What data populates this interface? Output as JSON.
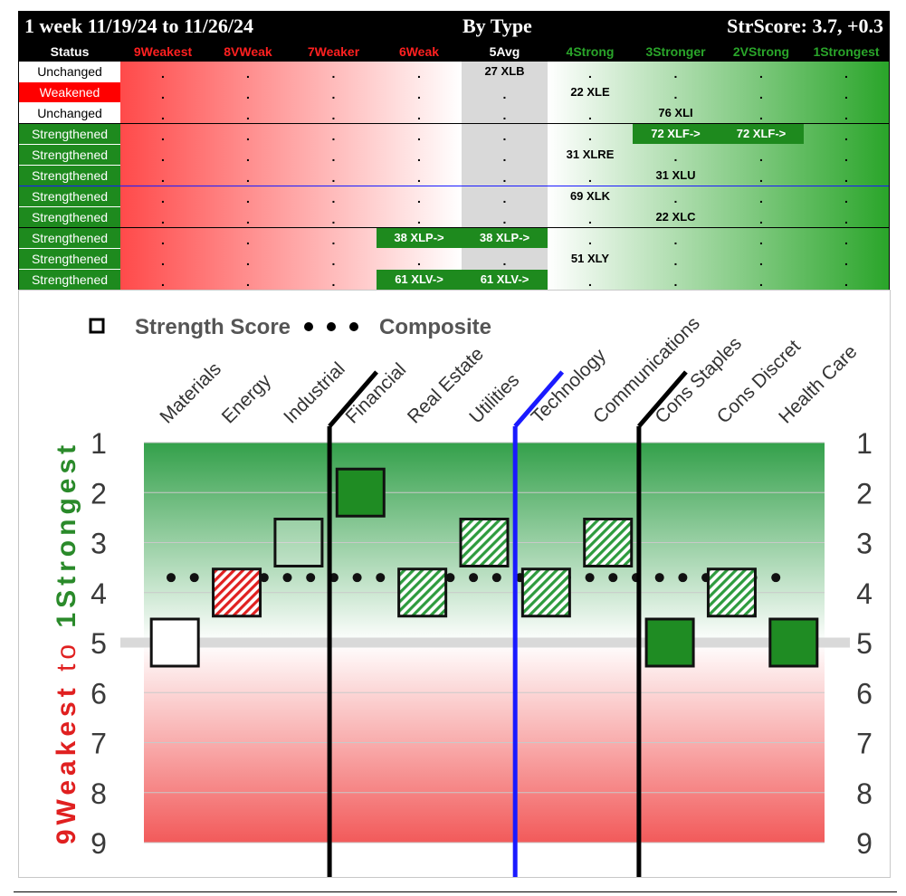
{
  "header": {
    "period": "1 week 11/19/24 to 11/26/24",
    "center": "By Type",
    "score": "StrScore: 3.7, +0.3"
  },
  "columns": [
    "Status",
    "9Weakest",
    "8VWeak",
    "7Weaker",
    "6Weak",
    "5Avg",
    "4Strong",
    "3Stronger",
    "2VStrong",
    "1Strongest"
  ],
  "column_colors": [
    "#ffffff",
    "#ff2020",
    "#ff2020",
    "#ff2020",
    "#ff2020",
    "#ffffff",
    "#2aa52a",
    "#2aa52a",
    "#2aa52a",
    "#2aa52a"
  ],
  "status_colors": {
    "Unchanged": "#ffffff",
    "Weakened": "#ff0000",
    "Strengthened": "#1e8a1e"
  },
  "rows": [
    {
      "status": "Unchanged",
      "cells": [
        {
          "col": 5,
          "text": "27 XLB"
        }
      ]
    },
    {
      "status": "Weakened",
      "cells": [
        {
          "col": 6,
          "text": "22 XLE"
        }
      ]
    },
    {
      "status": "Unchanged",
      "cells": [
        {
          "col": 7,
          "text": "76 XLI"
        }
      ]
    },
    {
      "status": "Strengthened",
      "cells": [
        {
          "col": 7,
          "text": "72 XLF->",
          "hl": true
        },
        {
          "col": 8,
          "text": "72 XLF->",
          "hl": true
        }
      ]
    },
    {
      "status": "Strengthened",
      "cells": [
        {
          "col": 6,
          "text": "31 XLRE"
        }
      ]
    },
    {
      "status": "Strengthened",
      "cells": [
        {
          "col": 7,
          "text": "31 XLU"
        }
      ]
    },
    {
      "status": "Strengthened",
      "cells": [
        {
          "col": 6,
          "text": "69 XLK"
        }
      ]
    },
    {
      "status": "Strengthened",
      "cells": [
        {
          "col": 7,
          "text": "22 XLC"
        }
      ]
    },
    {
      "status": "Strengthened",
      "cells": [
        {
          "col": 4,
          "text": "38 XLP->",
          "hl": true
        },
        {
          "col": 5,
          "text": "38 XLP->",
          "hl": true
        }
      ]
    },
    {
      "status": "Strengthened",
      "cells": [
        {
          "col": 6,
          "text": "51 XLY"
        }
      ]
    },
    {
      "status": "Strengthened",
      "cells": [
        {
          "col": 4,
          "text": "61 XLV->",
          "hl": true
        },
        {
          "col": 5,
          "text": "61 XLV->",
          "hl": true
        }
      ]
    }
  ],
  "dot_char": ".",
  "chart_data": {
    "type": "scatter",
    "legend": {
      "square_label": "Strength Score",
      "dots_label": "Composite",
      "placement": "top-left"
    },
    "categories": [
      "Materials",
      "Energy",
      "Industrial",
      "Financial",
      "Real Estate",
      "Utilities",
      "Technology",
      "Communications",
      "Cons Staples",
      "Cons Discret",
      "Health Care"
    ],
    "scores": [
      5,
      4,
      3,
      2,
      4,
      3,
      4,
      3,
      5,
      4,
      5
    ],
    "styles": [
      "hollow",
      "red-hatch",
      "hollow-green",
      "solid-green",
      "green-hatch",
      "green-hatch",
      "green-hatch",
      "green-hatch",
      "solid-green",
      "green-hatch",
      "solid-green"
    ],
    "composite": 3.7,
    "average_line": 5,
    "dividers": [
      {
        "between": [
          2,
          3
        ],
        "color": "#000000"
      },
      {
        "between": [
          5,
          6
        ],
        "color": "#1a1aff"
      },
      {
        "between": [
          7,
          8
        ],
        "color": "#000000"
      }
    ],
    "y_range": [
      1,
      9
    ],
    "y_ticks": [
      "1",
      "2",
      "3",
      "4",
      "5",
      "6",
      "7",
      "8",
      "9"
    ],
    "y_axis_label_weak": "9Weakest",
    "y_axis_label_to": "to",
    "y_axis_label_strong": "1Strongest"
  }
}
